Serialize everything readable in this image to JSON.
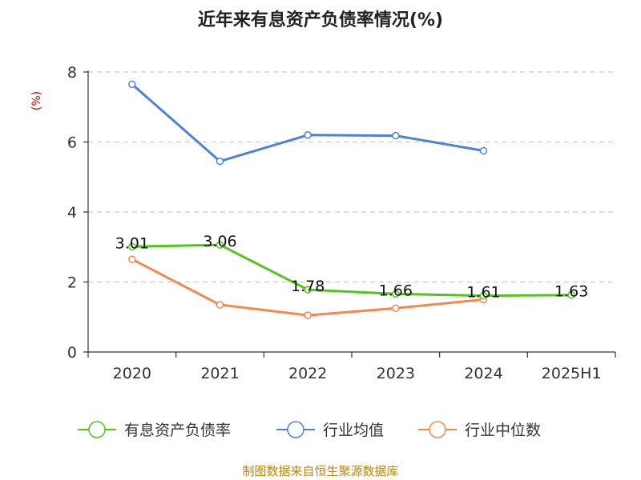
{
  "chart_data": {
    "type": "line",
    "title": "近年来有息资产负债率情况(%)",
    "unit_label": "(%)",
    "categories": [
      "2020",
      "2021",
      "2022",
      "2023",
      "2024",
      "2025H1"
    ],
    "y_ticks": [
      "0",
      "2",
      "4",
      "6",
      "8"
    ],
    "ylim": [
      0,
      8
    ],
    "grid": "horizontal dashed",
    "legend_position": "bottom",
    "series": [
      {
        "name": "有息资产负债率",
        "color": "#52c41a",
        "values": [
          3.01,
          3.06,
          1.78,
          1.66,
          1.61,
          1.63
        ],
        "labels": [
          "3.01",
          "3.06",
          "1.78",
          "1.66",
          "1.61",
          "1.63"
        ]
      },
      {
        "name": "行业均值",
        "color": "#4f81d9",
        "values": [
          7.65,
          5.45,
          6.2,
          6.18,
          5.75,
          null
        ]
      },
      {
        "name": "行业中位数",
        "color": "#f4894f",
        "values": [
          2.65,
          1.35,
          1.05,
          1.25,
          1.5,
          null
        ]
      }
    ],
    "source": "制图数据来自恒生聚源数据库"
  }
}
